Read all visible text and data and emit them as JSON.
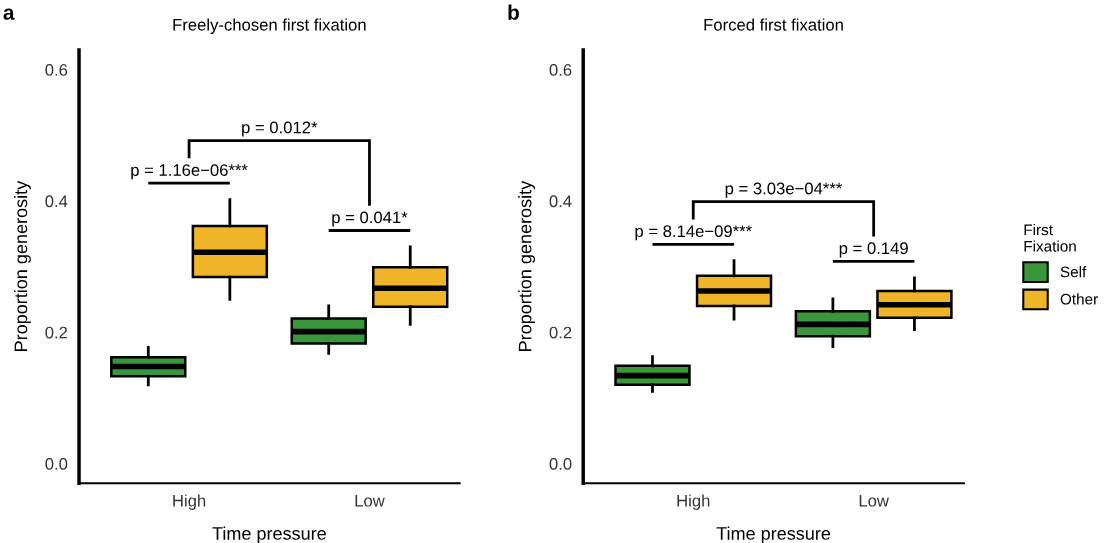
{
  "chart_data": [
    {
      "type": "box",
      "title": "Freely-chosen first fixation",
      "xlabel": "Time pressure",
      "ylabel": "Proportion generosity",
      "categories": [
        "High",
        "Low"
      ],
      "ylim": [
        -0.03,
        0.63
      ],
      "yticks": [
        {
          "value": 0,
          "label": "0.0"
        },
        0.2,
        0.4,
        0.6
      ],
      "grid": false,
      "legend": false,
      "series": [
        {
          "color": "#3a963a",
          "boxes": [
            {
              "low": 0.12,
              "q1": 0.133,
              "median": 0.148,
              "q3": 0.162,
              "high": 0.177
            },
            {
              "low": 0.168,
              "q1": 0.183,
              "median": 0.201,
              "q3": 0.221,
              "high": 0.24
            }
          ]
        },
        {
          "color": "#f0b428",
          "boxes": [
            {
              "low": 0.25,
              "q1": 0.284,
              "median": 0.322,
              "q3": 0.362,
              "high": 0.402
            },
            {
              "low": 0.212,
              "q1": 0.239,
              "median": 0.267,
              "q3": 0.299,
              "high": 0.33
            }
          ]
        }
      ],
      "annotations": [
        "a",
        "p = 0.012*",
        "p = 1.16e−06***",
        "p = 0.041*"
      ]
    },
    {
      "type": "box",
      "title": "Forced first fixation",
      "xlabel": "Time pressure",
      "ylabel": "Proportion generosity",
      "categories": [
        "High",
        "Low"
      ],
      "ylim": [
        -0.03,
        0.63
      ],
      "yticks": [
        {
          "value": 0,
          "label": "0.0"
        },
        0.2,
        0.4,
        0.6
      ],
      "grid": false,
      "legend": "right",
      "legend_title": "First Fixation",
      "series": [
        {
          "name": "Self",
          "color": "#3a963a",
          "boxes": [
            {
              "low": 0.11,
              "q1": 0.12,
              "median": 0.134,
              "q3": 0.149,
              "high": 0.163
            },
            {
              "low": 0.178,
              "q1": 0.194,
              "median": 0.212,
              "q3": 0.232,
              "high": 0.251
            }
          ]
        },
        {
          "name": "Other",
          "color": "#f0b428",
          "boxes": [
            {
              "low": 0.22,
              "q1": 0.24,
              "median": 0.263,
              "q3": 0.286,
              "high": 0.309
            },
            {
              "low": 0.204,
              "q1": 0.222,
              "median": 0.242,
              "q3": 0.263,
              "high": 0.283
            }
          ]
        }
      ],
      "annotations": [
        "b",
        "p = 3.03e−04***",
        "p = 8.14e−09***",
        "p = 0.149"
      ]
    }
  ]
}
